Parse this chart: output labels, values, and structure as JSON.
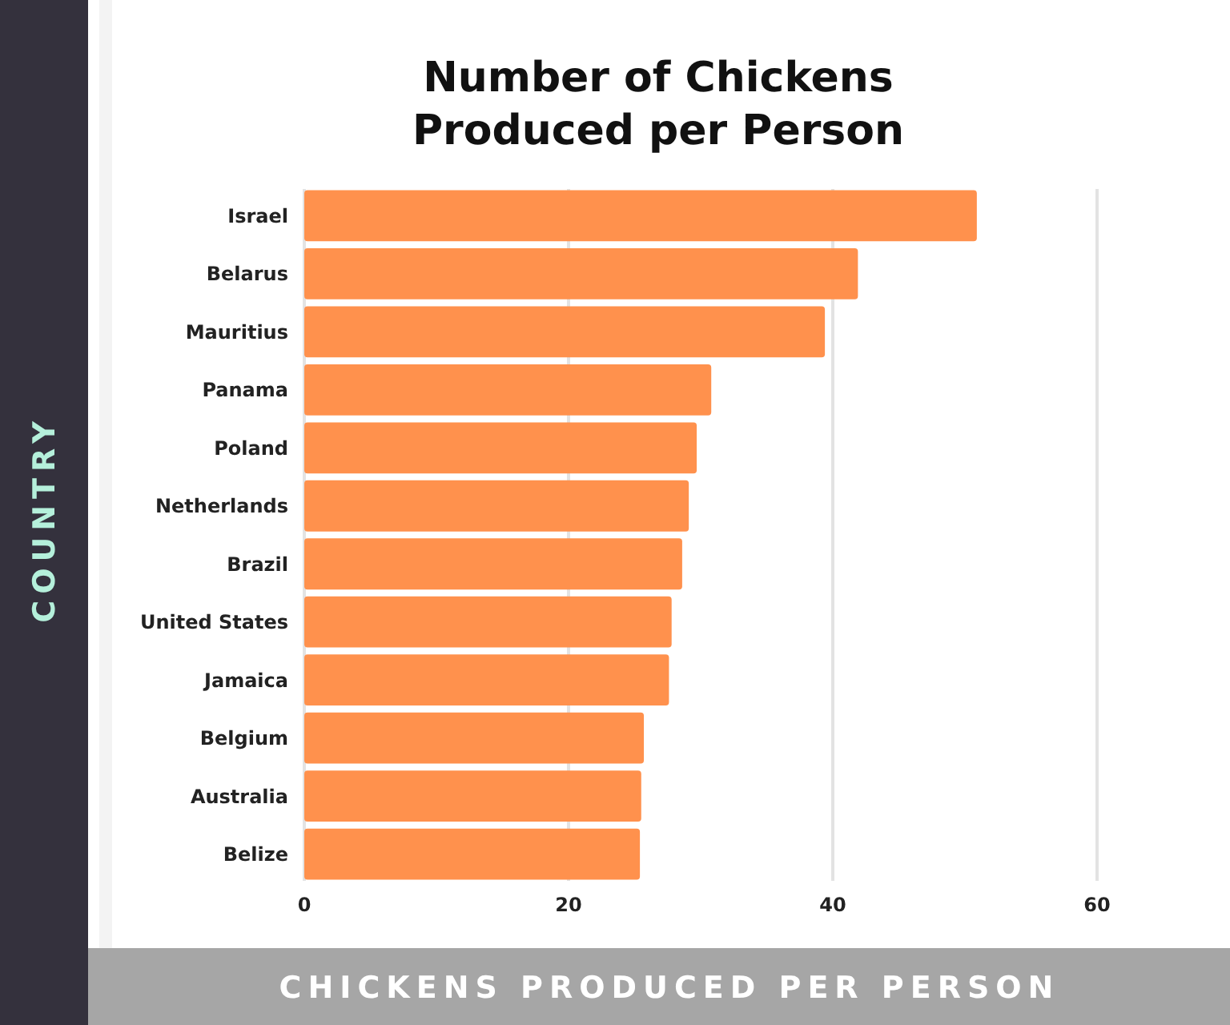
{
  "chart_data": {
    "type": "bar",
    "orientation": "horizontal",
    "title": "Number of Chickens\nProduced per Person",
    "xlabel": "CHICKENS PRODUCED PER PERSON",
    "ylabel": "COUNTRY",
    "categories": [
      "Israel",
      "Belarus",
      "Mauritius",
      "Panama",
      "Poland",
      "Netherlands",
      "Brazil",
      "United States",
      "Jamaica",
      "Belgium",
      "Australia",
      "Belize"
    ],
    "values": [
      50.9,
      41.9,
      39.4,
      30.8,
      29.7,
      29.1,
      28.6,
      27.8,
      27.6,
      25.7,
      25.5,
      25.4
    ],
    "color": "#ff914d",
    "xlim": [
      0,
      60
    ],
    "xticks": [
      0,
      20,
      40,
      60
    ],
    "grid": "x"
  }
}
